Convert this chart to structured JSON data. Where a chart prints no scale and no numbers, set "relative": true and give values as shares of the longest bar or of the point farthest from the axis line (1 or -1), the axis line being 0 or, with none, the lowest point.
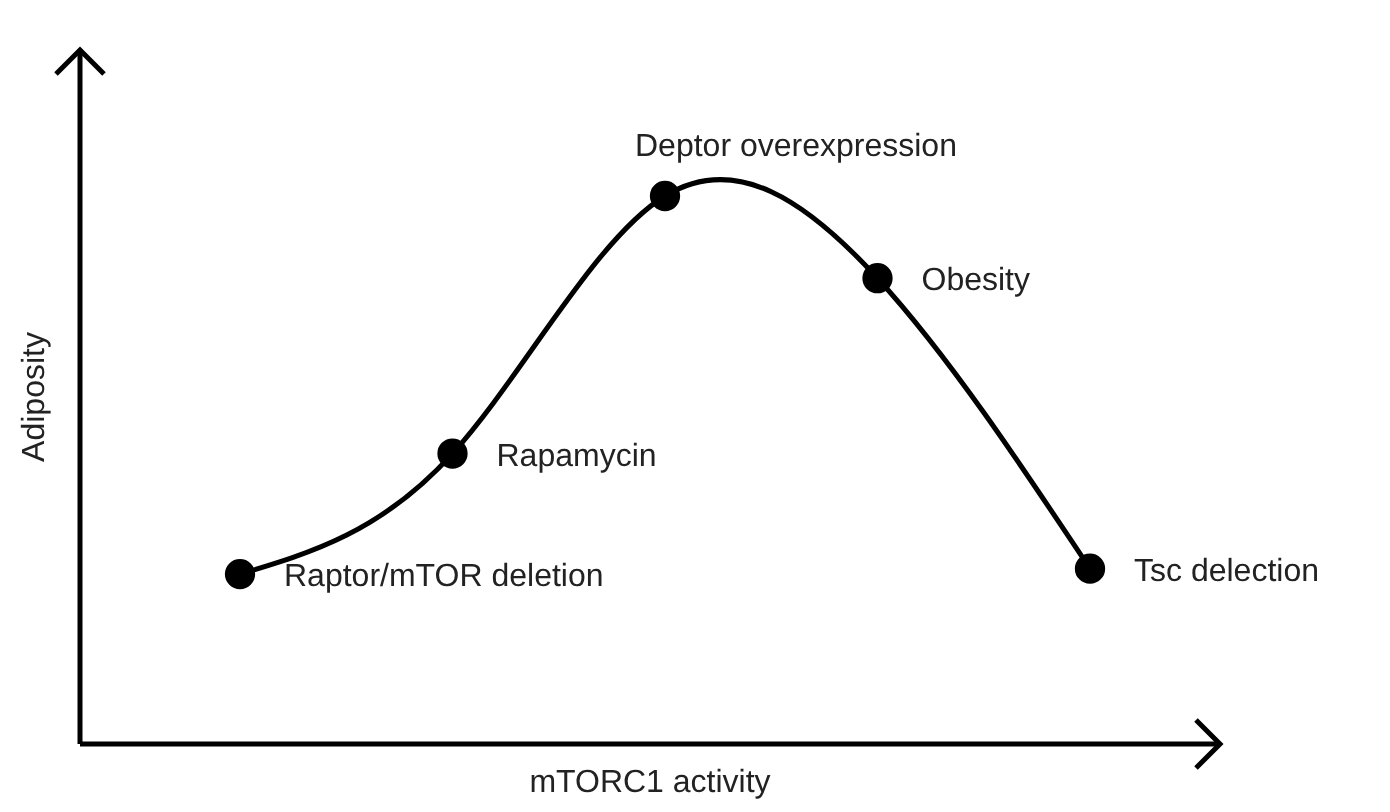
{
  "chart_data": {
    "type": "line",
    "xlabel": "mTORC1 activity",
    "ylabel": "Adiposity",
    "relative": true,
    "categories": [
      null,
      null,
      null,
      null,
      null
    ],
    "series": [
      {
        "color": "#000000",
        "values": [
          0.31,
          0.53,
          1,
          0.85,
          0.32
        ]
      }
    ],
    "annotations": [
      "Raptor/mTOR deletion",
      "Rapamycin",
      "Deptor overexpression",
      "Obesity",
      "Tsc delection"
    ],
    "marker": "circle",
    "line_style": "solid"
  }
}
